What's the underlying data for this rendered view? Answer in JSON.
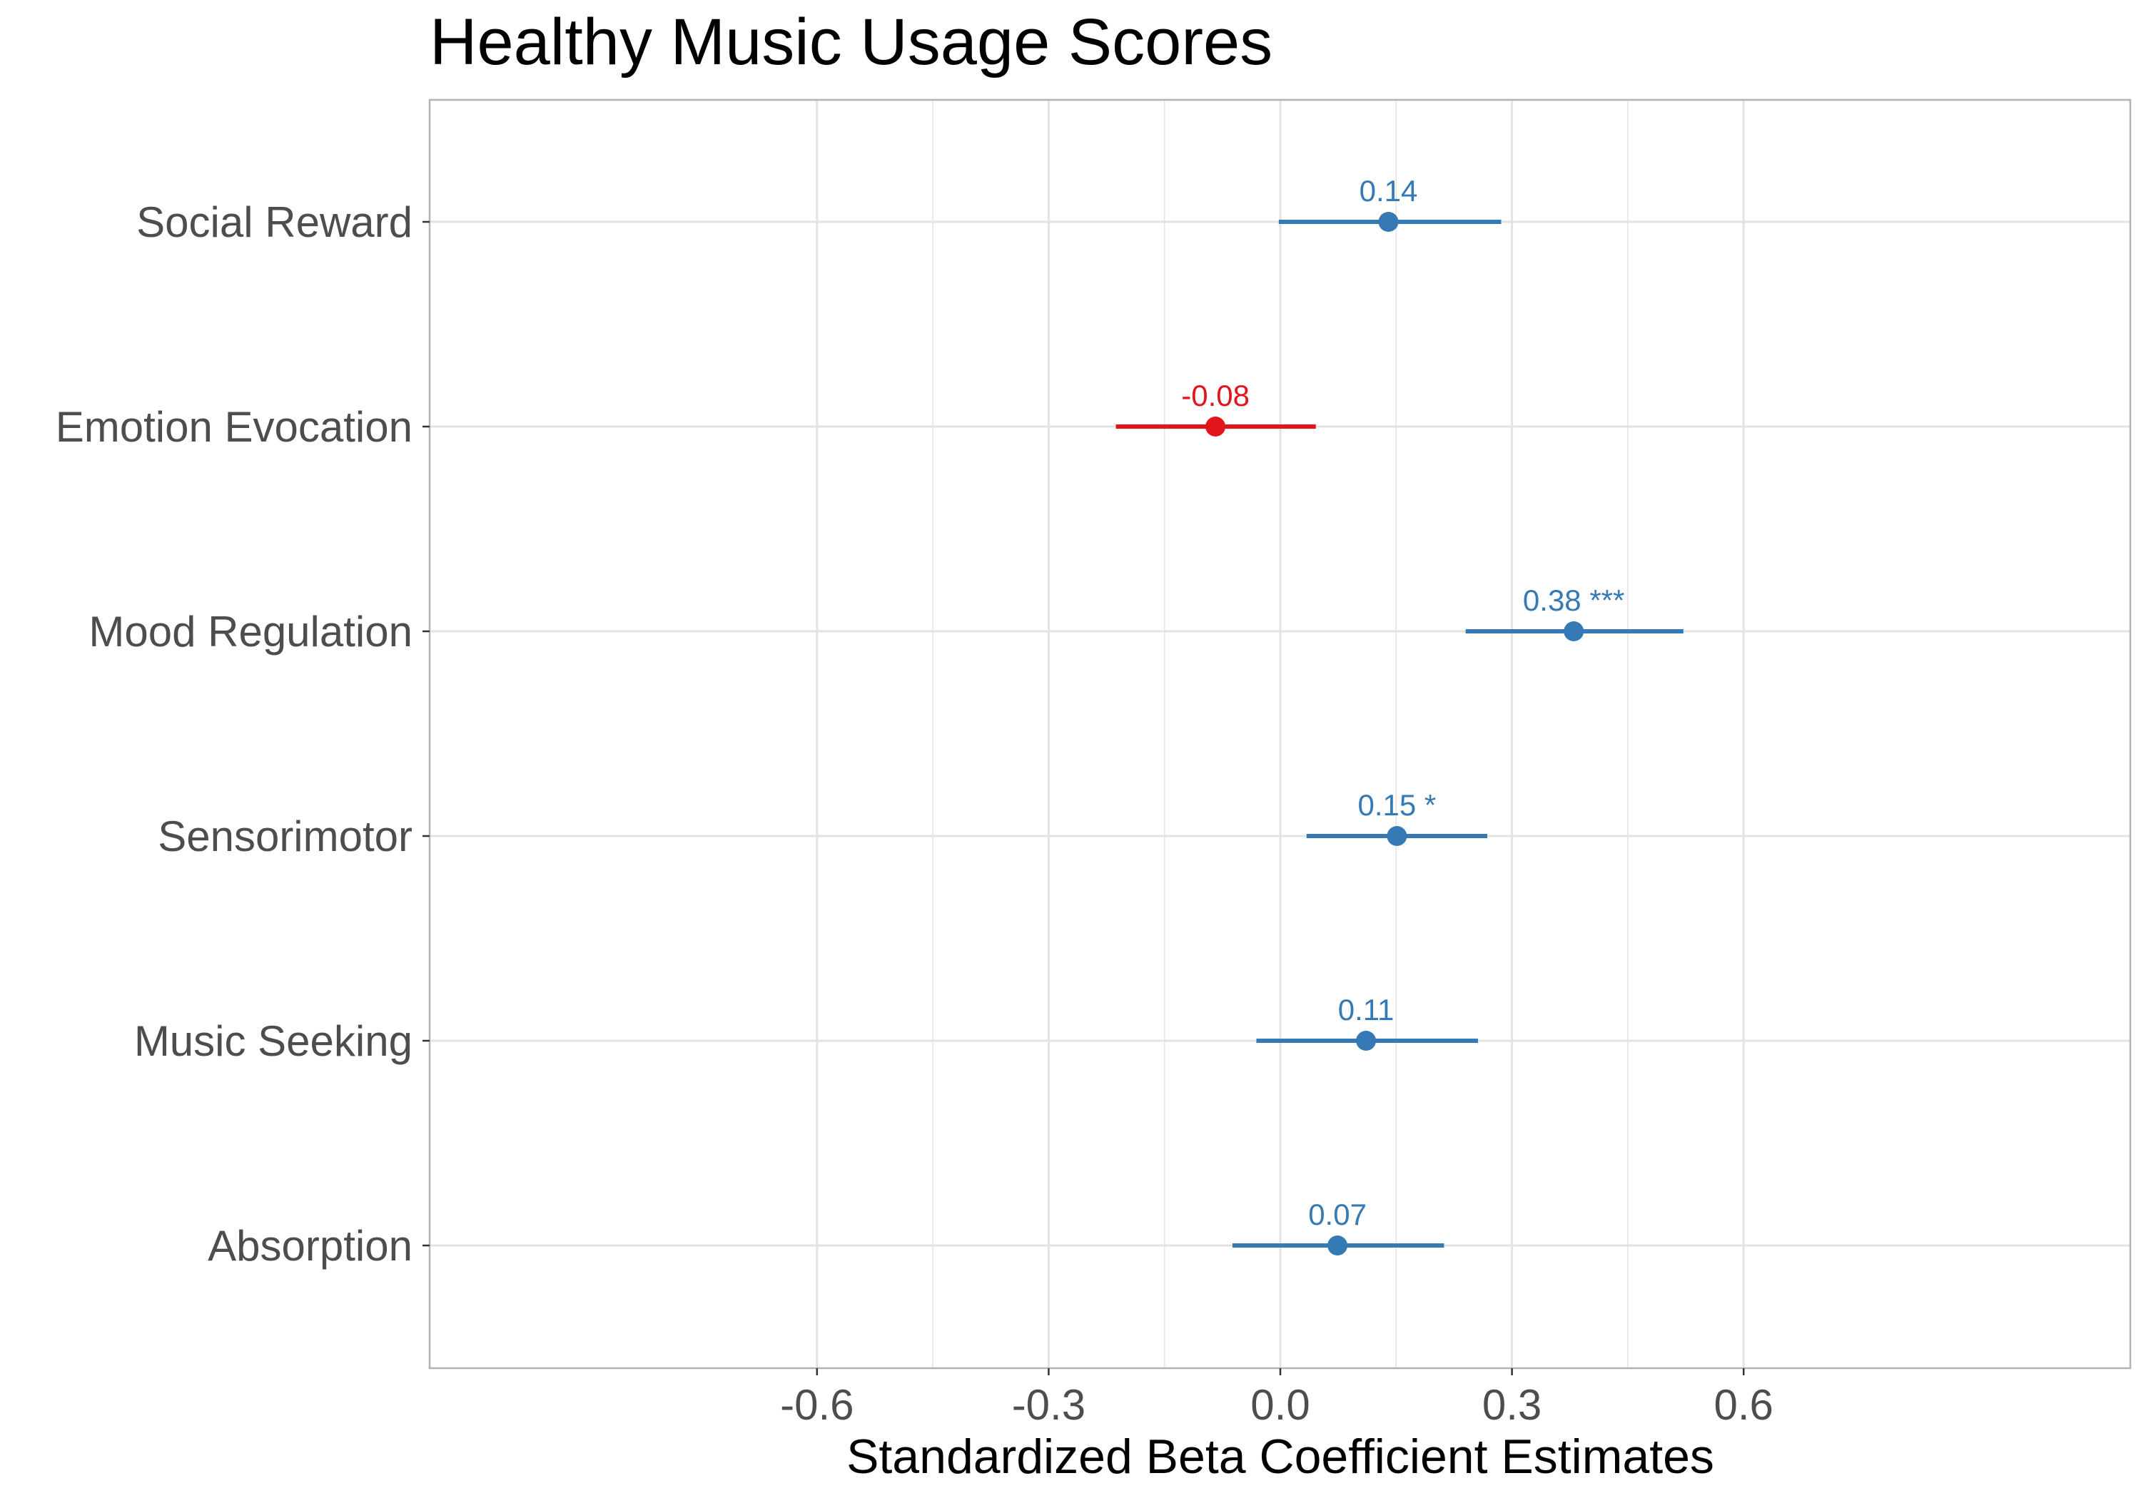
{
  "chart_data": {
    "type": "scatter",
    "title": "Healthy Music Usage Scores",
    "xlabel": "Standardized Beta Coefficient Estimates",
    "ylabel": "",
    "xlim": [
      -0.66,
      0.66
    ],
    "x_ticks": [
      -0.6,
      -0.3,
      0.0,
      0.3,
      0.6
    ],
    "x_tick_labels": [
      "-0.6",
      "-0.3",
      "0.0",
      "0.3",
      "0.6"
    ],
    "x_minor_ticks": [
      -0.45,
      -0.15,
      0.15,
      0.45
    ],
    "grid": true,
    "colors": {
      "positive": "#3579b5",
      "negative": "#e3141c",
      "grid": "#e3e3e3",
      "panel_border": "#b3b3b3",
      "tick_text": "#4d4d4d"
    },
    "categories": [
      "Social Reward",
      "Emotion Evocation",
      "Mood Regulation",
      "Sensorimotor",
      "Music Seeking",
      "Absorption"
    ],
    "estimates": [
      {
        "category": "Social Reward",
        "value": 0.14,
        "ci_low": -0.002,
        "ci_high": 0.286,
        "label": "0.14",
        "color": "#3579b5"
      },
      {
        "category": "Emotion Evocation",
        "value": -0.084,
        "ci_low": -0.213,
        "ci_high": 0.046,
        "label": "-0.08",
        "color": "#e3141c"
      },
      {
        "category": "Mood Regulation",
        "value": 0.38,
        "ci_low": 0.24,
        "ci_high": 0.522,
        "label": "0.38 ***",
        "color": "#3579b5"
      },
      {
        "category": "Sensorimotor",
        "value": 0.151,
        "ci_low": 0.034,
        "ci_high": 0.268,
        "label": "0.15 *",
        "color": "#3579b5"
      },
      {
        "category": "Music Seeking",
        "value": 0.111,
        "ci_low": -0.031,
        "ci_high": 0.256,
        "label": "0.11",
        "color": "#3579b5"
      },
      {
        "category": "Absorption",
        "value": 0.074,
        "ci_low": -0.062,
        "ci_high": 0.212,
        "label": "0.07",
        "color": "#3579b5"
      }
    ]
  }
}
